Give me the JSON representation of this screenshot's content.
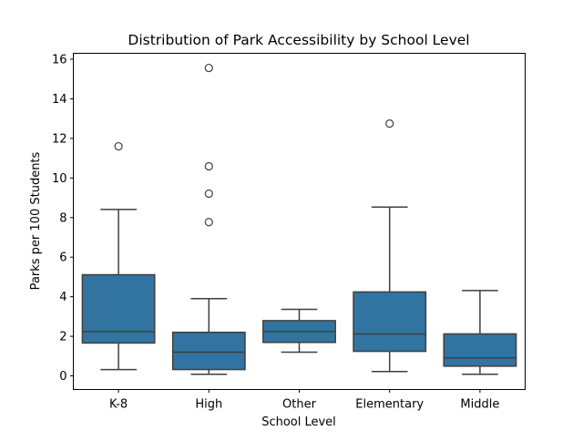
{
  "chart_data": {
    "type": "box",
    "title": "Distribution of Park Accessibility by School Level",
    "xlabel": "School Level",
    "ylabel": "Parks per 100 Students",
    "ylim": [
      -0.69,
      16.3
    ],
    "yticks": [
      0,
      2,
      4,
      6,
      8,
      10,
      12,
      14,
      16
    ],
    "grid": false,
    "colors": {
      "box_fill": "#3274a1",
      "line": "#3f3f3f"
    },
    "categories": [
      "K-8",
      "High",
      "Other",
      "Elementary",
      "Middle"
    ],
    "boxes": [
      {
        "whisker_low": 0.32,
        "q1": 1.66,
        "median": 2.24,
        "q3": 5.11,
        "whisker_high": 8.41,
        "outliers": [
          11.6
        ]
      },
      {
        "whisker_low": 0.08,
        "q1": 0.32,
        "median": 1.2,
        "q3": 2.2,
        "whisker_high": 3.9,
        "outliers": [
          15.56,
          10.59,
          9.21,
          7.77
        ]
      },
      {
        "whisker_low": 1.2,
        "q1": 1.69,
        "median": 2.24,
        "q3": 2.79,
        "whisker_high": 3.36,
        "outliers": []
      },
      {
        "whisker_low": 0.22,
        "q1": 1.24,
        "median": 2.12,
        "q3": 4.24,
        "whisker_high": 8.53,
        "outliers": [
          12.75
        ]
      },
      {
        "whisker_low": 0.08,
        "q1": 0.49,
        "median": 0.91,
        "q3": 2.12,
        "whisker_high": 4.31,
        "outliers": []
      }
    ]
  }
}
